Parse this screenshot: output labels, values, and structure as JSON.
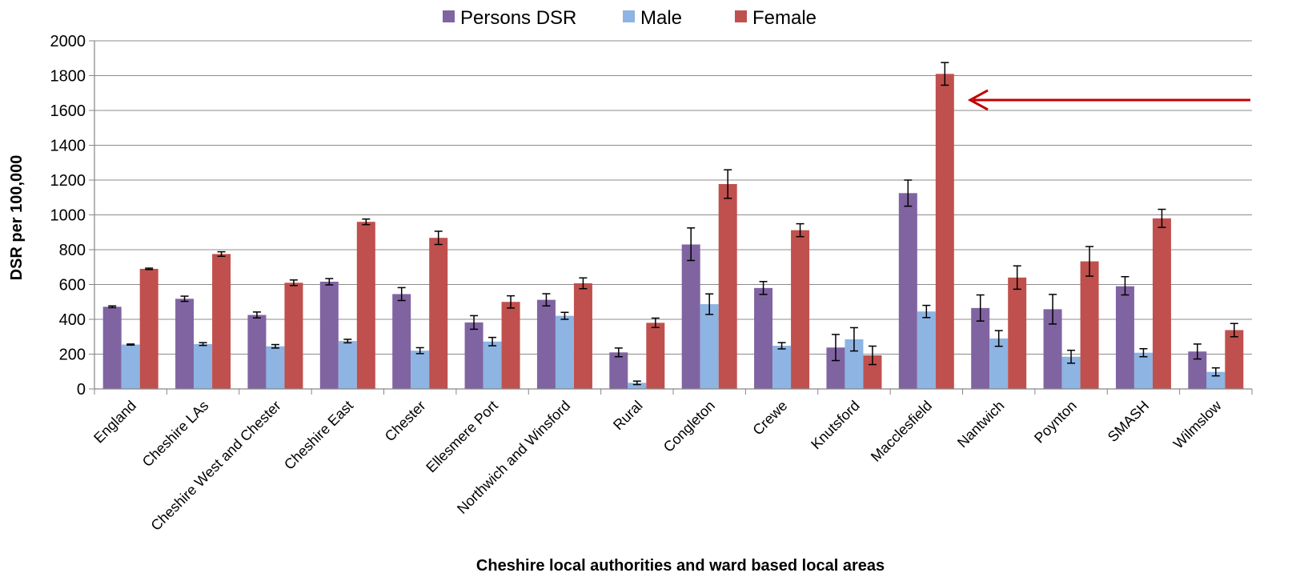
{
  "chart_data": {
    "type": "bar",
    "title": "",
    "xlabel": "Cheshire local authorities and ward based local areas",
    "ylabel": "DSR per 100,000",
    "ylim": [
      0,
      2000
    ],
    "yticks": [
      0,
      200,
      400,
      600,
      800,
      1000,
      1200,
      1400,
      1600,
      1800,
      2000
    ],
    "grid": true,
    "legend_position": "top",
    "categories": [
      "England",
      "Cheshire LAs",
      "Cheshire West and Chester",
      "Cheshire East",
      "Chester",
      "Ellesmere Port",
      "Northwich and Winsford",
      "Rural",
      "Congleton",
      "Crewe",
      "Knutsford",
      "Macclesfield",
      "Nantwich",
      "Poynton",
      "SMASH",
      "Wilmslow"
    ],
    "series": [
      {
        "name": "Persons DSR",
        "color": "#8064A2",
        "values": [
          472,
          518,
          425,
          616,
          545,
          382,
          512,
          210,
          830,
          580,
          238,
          1125,
          465,
          458,
          590,
          215
        ],
        "lower": [
          467,
          503,
          408,
          598,
          508,
          343,
          477,
          185,
          738,
          543,
          163,
          1050,
          390,
          373,
          540,
          172
        ],
        "upper": [
          477,
          533,
          442,
          634,
          582,
          421,
          547,
          235,
          925,
          617,
          313,
          1200,
          540,
          543,
          645,
          258
        ]
      },
      {
        "name": "Male",
        "color": "#8DB4E2",
        "values": [
          255,
          258,
          245,
          275,
          220,
          272,
          420,
          35,
          487,
          248,
          285,
          445,
          290,
          185,
          208,
          98
        ],
        "lower": [
          252,
          250,
          235,
          265,
          203,
          248,
          400,
          25,
          428,
          230,
          218,
          410,
          245,
          148,
          185,
          75
        ],
        "upper": [
          258,
          266,
          255,
          285,
          237,
          296,
          440,
          45,
          546,
          266,
          352,
          480,
          335,
          222,
          231,
          121
        ]
      },
      {
        "name": "Female",
        "color": "#C0504D",
        "values": [
          690,
          775,
          610,
          960,
          868,
          500,
          607,
          380,
          1177,
          912,
          193,
          1810,
          640,
          733,
          980,
          338
        ],
        "lower": [
          686,
          762,
          594,
          944,
          830,
          465,
          576,
          353,
          1095,
          875,
          140,
          1745,
          573,
          648,
          928,
          300
        ],
        "upper": [
          694,
          788,
          626,
          976,
          906,
          535,
          638,
          407,
          1259,
          949,
          246,
          1875,
          707,
          818,
          1032,
          376
        ]
      }
    ],
    "annotation": {
      "type": "arrow",
      "points_to": "Macclesfield Female",
      "y_value": 1660,
      "color": "#C00000"
    }
  }
}
